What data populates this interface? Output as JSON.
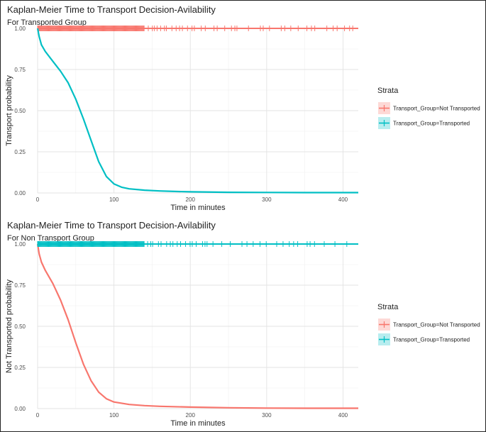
{
  "chart_data": [
    {
      "type": "line",
      "title": "Kaplan-Meier Time to Transport Decision-Avilability",
      "subtitle": "For Transported Group",
      "xlabel": "Time in minutes",
      "ylabel": "Transport probability",
      "xlim": [
        0,
        420
      ],
      "ylim": [
        0,
        1
      ],
      "x_ticks": [
        "0",
        "100",
        "200",
        "300",
        "400"
      ],
      "y_ticks": [
        "0.00",
        "0.25",
        "0.50",
        "0.75",
        "1.00"
      ],
      "grid": true,
      "legend_title": "Strata",
      "legend_position": "right",
      "series": [
        {
          "name": "Transport_Group=Not Transported",
          "color": "#F8766D",
          "x": [
            0,
            420
          ],
          "y": [
            1.0,
            1.0
          ],
          "censor_marks": true
        },
        {
          "name": "Transport_Group=Transported",
          "color": "#00BFC4",
          "x": [
            0,
            2,
            5,
            10,
            20,
            30,
            40,
            50,
            60,
            70,
            80,
            90,
            100,
            110,
            120,
            140,
            160,
            180,
            200,
            250,
            300,
            350,
            400,
            420
          ],
          "y": [
            1.0,
            0.95,
            0.9,
            0.86,
            0.8,
            0.74,
            0.67,
            0.57,
            0.45,
            0.32,
            0.19,
            0.1,
            0.055,
            0.035,
            0.025,
            0.017,
            0.012,
            0.009,
            0.007,
            0.004,
            0.003,
            0.002,
            0.002,
            0.002
          ]
        }
      ]
    },
    {
      "type": "line",
      "title": "Kaplan-Meier Time to Transport Decision-Avilability",
      "subtitle": "For Non Transport Group",
      "xlabel": "Time in minutes",
      "ylabel": "Not Transported probability",
      "xlim": [
        0,
        420
      ],
      "ylim": [
        0,
        1
      ],
      "x_ticks": [
        "0",
        "100",
        "200",
        "300",
        "400"
      ],
      "y_ticks": [
        "0.00",
        "0.25",
        "0.50",
        "0.75",
        "1.00"
      ],
      "grid": true,
      "legend_title": "Strata",
      "legend_position": "right",
      "series": [
        {
          "name": "Transport_Group=Not Transported",
          "color": "#F8766D",
          "x": [
            0,
            2,
            5,
            10,
            20,
            30,
            40,
            50,
            60,
            70,
            80,
            90,
            100,
            120,
            140,
            160,
            200,
            250,
            300,
            350,
            400,
            420
          ],
          "y": [
            1.0,
            0.94,
            0.89,
            0.84,
            0.76,
            0.66,
            0.54,
            0.4,
            0.27,
            0.17,
            0.1,
            0.06,
            0.04,
            0.025,
            0.018,
            0.014,
            0.009,
            0.005,
            0.003,
            0.002,
            0.002,
            0.002
          ]
        },
        {
          "name": "Transport_Group=Transported",
          "color": "#00BFC4",
          "x": [
            0,
            420
          ],
          "y": [
            1.0,
            1.0
          ],
          "censor_marks": true
        }
      ]
    }
  ]
}
